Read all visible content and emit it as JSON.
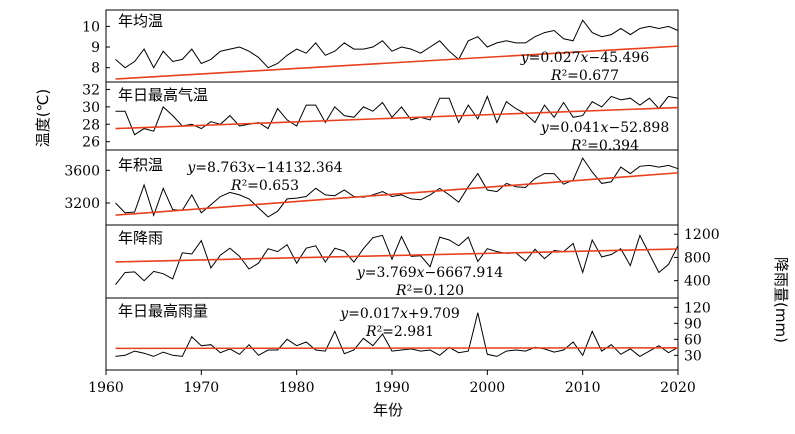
{
  "figure": {
    "left_axis_label": "温度(℃)",
    "right_axis_label": "降雨量(mm)",
    "x_axis_label": "年份",
    "x_ticks": [
      "1960",
      "1970",
      "1980",
      "1990",
      "2000",
      "2010",
      "2020"
    ]
  },
  "colors": {
    "series": "#000000",
    "trend": "#e8401c",
    "frame": "#000000"
  },
  "chart_data": [
    {
      "type": "line",
      "title": "年均温",
      "xlim": [
        1960,
        2020
      ],
      "ylim": [
        7.5,
        10.6
      ],
      "y_ticks": [
        8,
        9,
        10
      ],
      "x": [
        1961,
        1962,
        1963,
        1964,
        1965,
        1966,
        1967,
        1968,
        1969,
        1970,
        1971,
        1972,
        1973,
        1974,
        1975,
        1976,
        1977,
        1978,
        1979,
        1980,
        1981,
        1982,
        1983,
        1984,
        1985,
        1986,
        1987,
        1988,
        1989,
        1990,
        1991,
        1992,
        1993,
        1994,
        1995,
        1996,
        1997,
        1998,
        1999,
        2000,
        2001,
        2002,
        2003,
        2004,
        2005,
        2006,
        2007,
        2008,
        2009,
        2010,
        2011,
        2012,
        2013,
        2014,
        2015,
        2016,
        2017,
        2018,
        2019,
        2020
      ],
      "y": [
        8.4,
        8.0,
        8.3,
        8.9,
        8.0,
        8.8,
        8.3,
        8.4,
        8.9,
        8.2,
        8.4,
        8.8,
        8.9,
        9.0,
        8.8,
        8.5,
        8.0,
        8.2,
        8.6,
        8.9,
        8.7,
        9.2,
        8.6,
        8.8,
        9.2,
        8.9,
        8.9,
        9.0,
        9.3,
        8.8,
        9.0,
        8.9,
        8.7,
        9.0,
        9.3,
        8.8,
        8.4,
        9.3,
        9.5,
        9.0,
        9.2,
        9.3,
        9.2,
        9.2,
        9.5,
        9.7,
        9.8,
        9.4,
        9.3,
        10.3,
        9.7,
        9.5,
        9.6,
        9.9,
        9.6,
        9.9,
        10.0,
        9.9,
        10.0,
        9.8
      ],
      "trend": {
        "equation": "y=0.027x−45.496",
        "r2_label": "R²=0.677",
        "slope": 0.027,
        "intercept": -45.496
      }
    },
    {
      "type": "line",
      "title": "年日最高气温",
      "xlim": [
        1960,
        2020
      ],
      "ylim": [
        25.5,
        32.4
      ],
      "y_ticks": [
        26,
        28,
        30,
        32
      ],
      "x": [
        1961,
        1962,
        1963,
        1964,
        1965,
        1966,
        1967,
        1968,
        1969,
        1970,
        1971,
        1972,
        1973,
        1974,
        1975,
        1976,
        1977,
        1978,
        1979,
        1980,
        1981,
        1982,
        1983,
        1984,
        1985,
        1986,
        1987,
        1988,
        1989,
        1990,
        1991,
        1992,
        1993,
        1994,
        1995,
        1996,
        1997,
        1998,
        1999,
        2000,
        2001,
        2002,
        2003,
        2004,
        2005,
        2006,
        2007,
        2008,
        2009,
        2010,
        2011,
        2012,
        2013,
        2014,
        2015,
        2016,
        2017,
        2018,
        2019,
        2020
      ],
      "y": [
        29.5,
        29.5,
        26.8,
        27.5,
        27.2,
        30.0,
        29.0,
        27.8,
        28.0,
        27.5,
        28.3,
        28.0,
        29.0,
        27.8,
        28.0,
        28.2,
        27.5,
        29.8,
        28.5,
        27.8,
        30.2,
        30.2,
        28.2,
        30.0,
        29.0,
        28.8,
        30.0,
        29.5,
        30.5,
        28.8,
        30.0,
        28.5,
        28.8,
        28.5,
        31.0,
        31.0,
        28.2,
        30.2,
        28.6,
        31.2,
        28.2,
        30.6,
        29.8,
        29.2,
        28.2,
        30.2,
        28.8,
        30.5,
        28.8,
        29.0,
        30.6,
        30.0,
        31.2,
        30.8,
        31.0,
        30.2,
        31.0,
        29.8,
        31.2,
        31.0
      ],
      "trend": {
        "equation": "y=0.041x−52.898",
        "r2_label": "R²=0.394",
        "slope": 0.041,
        "intercept": -52.898
      }
    },
    {
      "type": "line",
      "title": "年积温",
      "xlim": [
        1960,
        2020
      ],
      "ylim": [
        2980,
        3800
      ],
      "y_ticks": [
        3200,
        3600
      ],
      "x": [
        1961,
        1962,
        1963,
        1964,
        1965,
        1966,
        1967,
        1968,
        1969,
        1970,
        1971,
        1972,
        1973,
        1974,
        1975,
        1976,
        1977,
        1978,
        1979,
        1980,
        1981,
        1982,
        1983,
        1984,
        1985,
        1986,
        1987,
        1988,
        1989,
        1990,
        1991,
        1992,
        1993,
        1994,
        1995,
        1996,
        1997,
        1998,
        1999,
        2000,
        2001,
        2002,
        2003,
        2004,
        2005,
        2006,
        2007,
        2008,
        2009,
        2010,
        2011,
        2012,
        2013,
        2014,
        2015,
        2016,
        2017,
        2018,
        2019,
        2020
      ],
      "y": [
        3200,
        3080,
        3090,
        3420,
        3050,
        3380,
        3120,
        3110,
        3300,
        3080,
        3180,
        3280,
        3330,
        3300,
        3250,
        3140,
        3030,
        3100,
        3250,
        3260,
        3280,
        3380,
        3300,
        3290,
        3360,
        3280,
        3270,
        3300,
        3340,
        3280,
        3300,
        3250,
        3240,
        3300,
        3380,
        3300,
        3210,
        3400,
        3560,
        3360,
        3340,
        3440,
        3400,
        3390,
        3500,
        3560,
        3560,
        3430,
        3480,
        3750,
        3580,
        3440,
        3460,
        3640,
        3560,
        3650,
        3660,
        3640,
        3660,
        3620
      ],
      "trend": {
        "equation": "y=8.763x−14132.364",
        "r2_label": "R²=0.653",
        "slope": 8.763,
        "intercept": -14132.364
      }
    },
    {
      "type": "line",
      "title": "年降雨",
      "xlim": [
        1960,
        2020
      ],
      "ylim": [
        170,
        1290
      ],
      "y_ticks": [
        400,
        800,
        1200
      ],
      "x": [
        1961,
        1962,
        1963,
        1964,
        1965,
        1966,
        1967,
        1968,
        1969,
        1970,
        1971,
        1972,
        1973,
        1974,
        1975,
        1976,
        1977,
        1978,
        1979,
        1980,
        1981,
        1982,
        1983,
        1984,
        1985,
        1986,
        1987,
        1988,
        1989,
        1990,
        1991,
        1992,
        1993,
        1994,
        1995,
        1996,
        1997,
        1998,
        1999,
        2000,
        2001,
        2002,
        2003,
        2004,
        2005,
        2006,
        2007,
        2008,
        2009,
        2010,
        2011,
        2012,
        2013,
        2014,
        2015,
        2016,
        2017,
        2018,
        2019,
        2020
      ],
      "y": [
        330,
        540,
        550,
        400,
        560,
        520,
        430,
        880,
        860,
        1090,
        620,
        840,
        960,
        820,
        600,
        700,
        950,
        900,
        1020,
        700,
        960,
        1000,
        720,
        960,
        910,
        720,
        950,
        1140,
        1180,
        770,
        1160,
        820,
        830,
        640,
        1150,
        1100,
        1000,
        1150,
        730,
        950,
        900,
        870,
        880,
        740,
        940,
        780,
        920,
        900,
        1040,
        540,
        1100,
        810,
        850,
        950,
        660,
        1180,
        860,
        540,
        680,
        1000
      ],
      "trend": {
        "equation": "y=3.769x−6667.914",
        "r2_label": "R²=0.120",
        "slope": 3.769,
        "intercept": -6667.914
      }
    },
    {
      "type": "line",
      "title": "年日最高雨量",
      "xlim": [
        1960,
        2020
      ],
      "ylim": [
        10,
        130
      ],
      "y_ticks": [
        30,
        60,
        90,
        120
      ],
      "x": [
        1961,
        1962,
        1963,
        1964,
        1965,
        1966,
        1967,
        1968,
        1969,
        1970,
        1971,
        1972,
        1973,
        1974,
        1975,
        1976,
        1977,
        1978,
        1979,
        1980,
        1981,
        1982,
        1983,
        1984,
        1985,
        1986,
        1987,
        1988,
        1989,
        1990,
        1991,
        1992,
        1993,
        1994,
        1995,
        1996,
        1997,
        1998,
        1999,
        2000,
        2001,
        2002,
        2003,
        2004,
        2005,
        2006,
        2007,
        2008,
        2009,
        2010,
        2011,
        2012,
        2013,
        2014,
        2015,
        2016,
        2017,
        2018,
        2019,
        2020
      ],
      "y": [
        28,
        30,
        38,
        34,
        28,
        36,
        30,
        28,
        65,
        48,
        50,
        35,
        42,
        32,
        50,
        30,
        40,
        40,
        60,
        48,
        55,
        40,
        38,
        75,
        33,
        40,
        62,
        48,
        70,
        38,
        40,
        42,
        38,
        40,
        30,
        45,
        35,
        38,
        110,
        32,
        28,
        38,
        40,
        38,
        45,
        42,
        36,
        40,
        55,
        30,
        75,
        38,
        50,
        32,
        42,
        28,
        38,
        48,
        35,
        45
      ],
      "trend": {
        "equation": "y=0.017x+9.709",
        "r2_label": "R²=2.981",
        "slope": 0.017,
        "intercept": 9.709
      }
    }
  ]
}
